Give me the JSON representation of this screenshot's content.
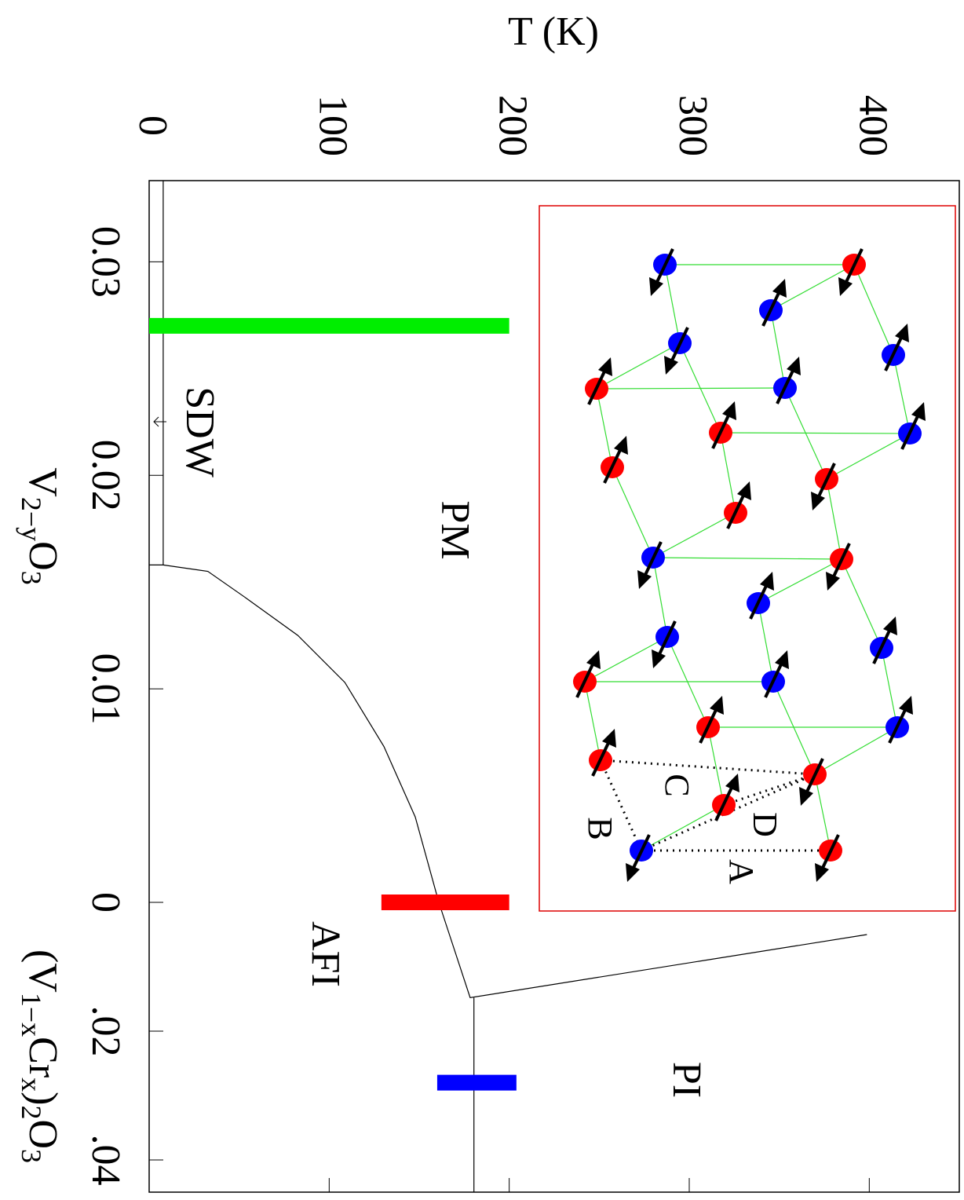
{
  "chart_data": {
    "type": "phase-diagram",
    "t_axis": {
      "label": "T (K)",
      "lim": [
        0,
        450
      ],
      "ticks": [
        0,
        100,
        200,
        300,
        400
      ]
    },
    "vacancy_axis": {
      "label": [
        "V",
        "2−y",
        "O",
        "3"
      ],
      "lim": [
        0.0338,
        0
      ],
      "ticks": [
        0.03,
        0.02,
        0.01,
        0
      ]
    },
    "cr_axis": {
      "label": [
        "(V",
        "1−x",
        "Cr",
        "x",
        ")",
        "2",
        "O",
        "3"
      ],
      "lim": [
        0,
        0.045
      ],
      "ticks": [
        {
          "value": 0.02,
          "label": ".02"
        },
        {
          "value": 0.04,
          "label": ".04"
        }
      ]
    },
    "boundaries": [
      {
        "axis": "vacancy",
        "T": [
          7.8,
          7.8
        ],
        "c": [
          0.0338,
          0.0158
        ]
      },
      {
        "axis": "vacancy",
        "T": [
          0,
          7.8,
          32.6,
          53,
          82.6,
          108.7,
          130.4,
          147.8,
          160.9
        ],
        "c": [
          0.0158,
          0.0158,
          0.0155,
          0.0143,
          0.0125,
          0.0103,
          0.0073,
          0.004,
          0
        ]
      },
      {
        "axis": "cr",
        "T": [
          160.9,
          178.3,
          398.7
        ],
        "c": [
          0,
          0.0148,
          0.005
        ]
      },
      {
        "axis": "cr",
        "T": [
          180.4,
          180.4
        ],
        "c": [
          0.0148,
          0.045
        ]
      }
    ],
    "markers": [
      {
        "axis": "vacancy",
        "T": [
          0,
          200
        ],
        "c": 0.027,
        "color": "#00ee00"
      },
      {
        "axis": "vacancy",
        "T": [
          129,
          200
        ],
        "c": 0,
        "color": "#ff0000"
      },
      {
        "axis": "cr",
        "T": [
          160,
          204
        ],
        "c": 0.028,
        "color": "#0000ff"
      }
    ],
    "phases": [
      "PM",
      "AFI",
      "PI",
      "SDW"
    ],
    "inset": {
      "labels": [
        "A",
        "B",
        "C",
        "D"
      ]
    }
  }
}
